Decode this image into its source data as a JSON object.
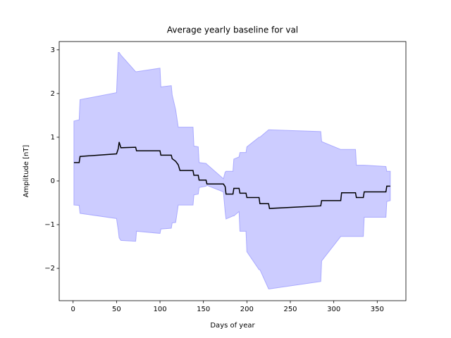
{
  "chart_data": {
    "type": "line_band",
    "title": "Average yearly baseline for val",
    "xlabel": "Days of year",
    "ylabel": "Amplitude [nT]",
    "x": [
      1,
      7,
      8,
      50,
      52,
      53,
      55,
      72,
      73,
      100,
      101,
      113,
      114,
      118,
      121,
      123,
      138,
      139,
      144,
      145,
      153,
      154,
      173,
      175,
      176,
      184,
      185,
      191,
      192,
      199,
      200,
      214,
      215,
      225,
      226,
      285,
      286,
      308,
      309,
      325,
      326,
      334,
      335,
      360,
      361,
      365
    ],
    "values": [
      0.42,
      0.42,
      0.56,
      0.62,
      0.74,
      0.89,
      0.76,
      0.77,
      0.69,
      0.69,
      0.59,
      0.59,
      0.51,
      0.45,
      0.37,
      0.24,
      0.24,
      0.13,
      0.13,
      0.02,
      0.02,
      -0.07,
      -0.07,
      -0.13,
      -0.3,
      -0.3,
      -0.17,
      -0.17,
      -0.28,
      -0.28,
      -0.38,
      -0.38,
      -0.52,
      -0.52,
      -0.63,
      -0.57,
      -0.45,
      -0.45,
      -0.27,
      -0.27,
      -0.38,
      -0.38,
      -0.25,
      -0.25,
      -0.12,
      -0.12
    ],
    "lower": [
      -0.55,
      -0.56,
      -0.74,
      -0.86,
      -1.13,
      -1.3,
      -1.36,
      -1.38,
      -1.15,
      -1.2,
      -1.1,
      -1.08,
      -0.96,
      -0.95,
      -0.55,
      -0.55,
      -0.55,
      -0.32,
      -0.3,
      -0.15,
      -0.12,
      -0.1,
      -0.25,
      -0.7,
      -0.87,
      -0.8,
      -0.8,
      -0.7,
      -1.15,
      -1.15,
      -1.62,
      -2.03,
      -2.03,
      -2.47,
      -2.47,
      -2.3,
      -1.83,
      -1.27,
      -1.27,
      -1.27,
      -1.27,
      -1.27,
      -0.83,
      -0.83,
      -0.47,
      -0.45
    ],
    "upper": [
      1.37,
      1.4,
      1.86,
      2.02,
      2.94,
      2.94,
      2.88,
      2.5,
      2.5,
      2.58,
      2.15,
      2.18,
      1.97,
      1.63,
      1.23,
      1.23,
      1.23,
      0.8,
      0.78,
      0.42,
      0.4,
      0.38,
      0.05,
      0.2,
      0.22,
      0.22,
      0.5,
      0.55,
      0.65,
      0.65,
      0.78,
      1.0,
      1.0,
      1.17,
      1.17,
      1.13,
      0.9,
      0.72,
      0.72,
      0.72,
      0.36,
      0.36,
      0.36,
      0.33,
      0.22,
      0.22
    ],
    "color": "#000000",
    "band_color": "#ccccff",
    "band_edge_color": "#aaaaff",
    "xlim": [
      -16,
      383
    ],
    "ylim": [
      -2.74,
      3.19
    ],
    "xticks": [
      0,
      50,
      100,
      150,
      200,
      250,
      300,
      350
    ],
    "yticks": [
      {
        "value": -2,
        "label": "−2"
      },
      {
        "value": -1,
        "label": "−1"
      },
      0,
      1,
      2,
      3
    ]
  }
}
